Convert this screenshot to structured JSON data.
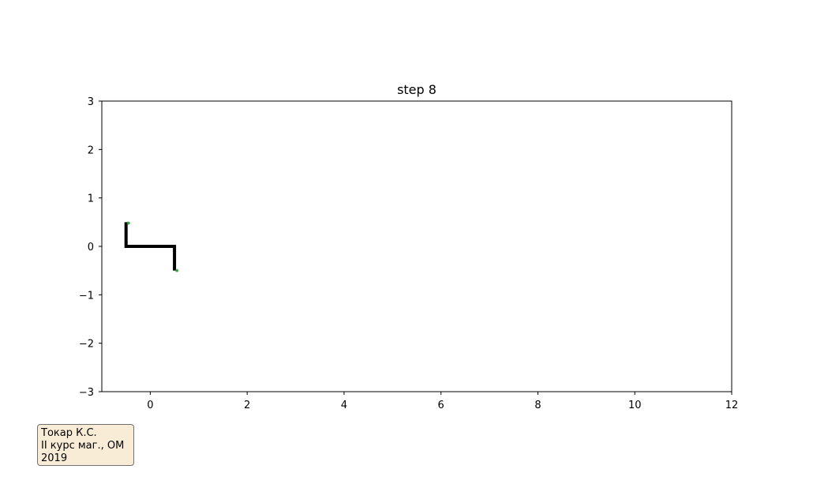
{
  "chart_data": {
    "type": "line",
    "title": "step 8",
    "xlabel": "",
    "ylabel": "",
    "xlim": [
      -1,
      12
    ],
    "ylim": [
      -3,
      3
    ],
    "x_ticks": [
      0,
      2,
      4,
      6,
      8,
      10,
      12
    ],
    "y_ticks": [
      -3,
      -2,
      -1,
      0,
      1,
      2,
      3
    ],
    "x_tick_labels": [
      "0",
      "2",
      "4",
      "6",
      "8",
      "10",
      "12"
    ],
    "y_tick_labels": [
      "−3",
      "−2",
      "−1",
      "0",
      "1",
      "2",
      "3"
    ],
    "grid": false,
    "series": [
      {
        "color": "#000000",
        "x": [
          -0.5,
          -0.5,
          0.5,
          0.5
        ],
        "y": [
          0.5,
          0.0,
          0.0,
          -0.5
        ]
      }
    ],
    "markers": {
      "color": "#2ca02c",
      "x": [
        -0.45,
        0.55
      ],
      "y": [
        0.48,
        -0.5
      ]
    }
  },
  "annotation": {
    "lines": [
      "Токар К.С.",
      "II курс маг., ОМ",
      "2019"
    ],
    "background": "#f8ecd7",
    "border": "#707070"
  }
}
